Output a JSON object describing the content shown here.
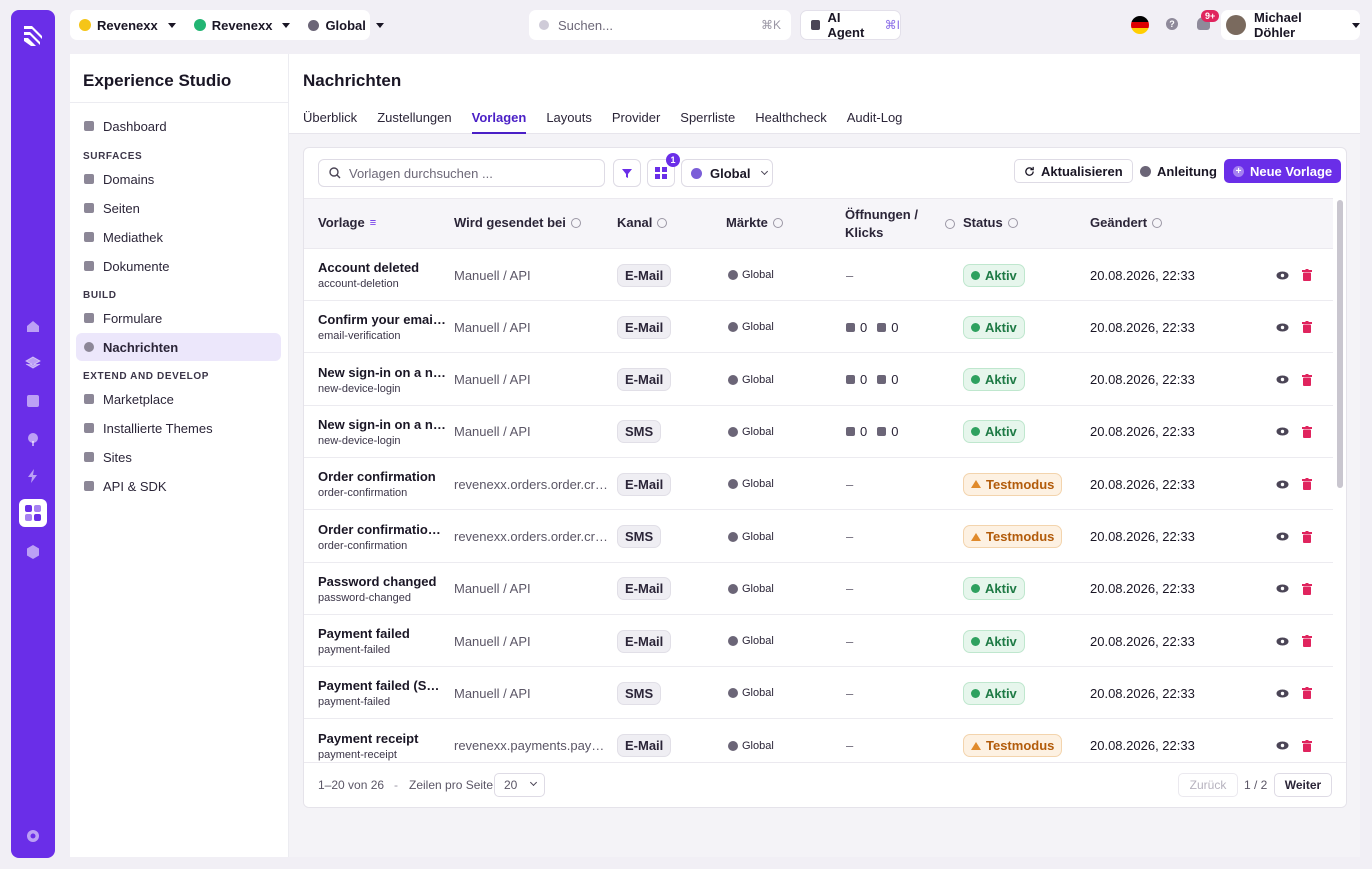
{
  "topbar": {
    "org": "Revenexx",
    "workspace": "Revenexx",
    "region": "Global",
    "search_placeholder": "Suchen...",
    "search_shortcut": "⌘K",
    "ai_agent": "AI Agent",
    "ai_shortcut": "⌘I",
    "notif_badge": "9+",
    "user_name": "Michael Döhler"
  },
  "sidebar": {
    "title": "Experience Studio",
    "dashboard": "Dashboard",
    "sections": {
      "surfaces": "SURFACES",
      "build": "BUILD",
      "extend": "EXTEND AND DEVELOP"
    },
    "surfaces": [
      "Domains",
      "Seiten",
      "Mediathek",
      "Dokumente"
    ],
    "build": [
      "Formulare",
      "Nachrichten"
    ],
    "extend": [
      "Marketplace",
      "Installierte Themes",
      "Sites",
      "API & SDK"
    ]
  },
  "page": {
    "title": "Nachrichten",
    "tabs": [
      "Überblick",
      "Zustellungen",
      "Vorlagen",
      "Layouts",
      "Provider",
      "Sperrliste",
      "Healthcheck",
      "Audit-Log"
    ],
    "active_tab": "Vorlagen"
  },
  "toolbar": {
    "search_placeholder": "Vorlagen durchsuchen ...",
    "view_badge": "1",
    "market": "Global",
    "refresh": "Aktualisieren",
    "guide": "Anleitung",
    "new": "Neue Vorlage"
  },
  "table": {
    "headers": [
      "Vorlage",
      "Wird gesendet bei",
      "Kanal",
      "Märkte",
      "Öffnungen /",
      "Klicks",
      "Status",
      "Geändert"
    ],
    "rows": [
      {
        "name": "Account deleted",
        "slug": "account-deletion",
        "trigger": "Manuell / API",
        "channel": "E-Mail",
        "market": "Global",
        "opens": "",
        "clicks": "",
        "dash": "–",
        "status": "Aktiv",
        "status_type": "ok",
        "date": "20.08.2026, 22:33"
      },
      {
        "name": "Confirm your email address",
        "slug": "email-verification",
        "trigger": "Manuell / API",
        "channel": "E-Mail",
        "market": "Global",
        "opens": "0",
        "clicks": "0",
        "dash": "",
        "status": "Aktiv",
        "status_type": "ok",
        "date": "20.08.2026, 22:33"
      },
      {
        "name": "New sign-in on a new device",
        "slug": "new-device-login",
        "trigger": "Manuell / API",
        "channel": "E-Mail",
        "market": "Global",
        "opens": "0",
        "clicks": "0",
        "dash": "",
        "status": "Aktiv",
        "status_type": "ok",
        "date": "20.08.2026, 22:33"
      },
      {
        "name": "New sign-in on a new device",
        "slug": "new-device-login",
        "trigger": "Manuell / API",
        "channel": "SMS",
        "market": "Global",
        "opens": "0",
        "clicks": "0",
        "dash": "",
        "status": "Aktiv",
        "status_type": "ok",
        "date": "20.08.2026, 22:33"
      },
      {
        "name": "Order confirmation",
        "slug": "order-confirmation",
        "trigger": "revenexx.orders.order.created",
        "channel": "E-Mail",
        "market": "Global",
        "opens": "",
        "clicks": "",
        "dash": "–",
        "status": "Testmodus",
        "status_type": "test",
        "date": "20.08.2026, 22:33"
      },
      {
        "name": "Order confirmation (SMS)",
        "slug": "order-confirmation",
        "trigger": "revenexx.orders.order.created",
        "channel": "SMS",
        "market": "Global",
        "opens": "",
        "clicks": "",
        "dash": "–",
        "status": "Testmodus",
        "status_type": "test",
        "date": "20.08.2026, 22:33"
      },
      {
        "name": "Password changed",
        "slug": "password-changed",
        "trigger": "Manuell / API",
        "channel": "E-Mail",
        "market": "Global",
        "opens": "",
        "clicks": "",
        "dash": "–",
        "status": "Aktiv",
        "status_type": "ok",
        "date": "20.08.2026, 22:33"
      },
      {
        "name": "Payment failed",
        "slug": "payment-failed",
        "trigger": "Manuell / API",
        "channel": "E-Mail",
        "market": "Global",
        "opens": "",
        "clicks": "",
        "dash": "–",
        "status": "Aktiv",
        "status_type": "ok",
        "date": "20.08.2026, 22:33"
      },
      {
        "name": "Payment failed (SMS)",
        "slug": "payment-failed",
        "trigger": "Manuell / API",
        "channel": "SMS",
        "market": "Global",
        "opens": "",
        "clicks": "",
        "dash": "–",
        "status": "Aktiv",
        "status_type": "ok",
        "date": "20.08.2026, 22:33"
      },
      {
        "name": "Payment receipt",
        "slug": "payment-receipt",
        "trigger": "revenexx.payments.payment.succeeded",
        "channel": "E-Mail",
        "market": "Global",
        "opens": "",
        "clicks": "",
        "dash": "–",
        "status": "Testmodus",
        "status_type": "test",
        "date": "20.08.2026, 22:33"
      }
    ]
  },
  "footer": {
    "range": "1–20 von 26",
    "sep": "-",
    "rows_label": "Zeilen pro Seite",
    "rows_value": "20",
    "prev": "Zurück",
    "page": "1 / 2",
    "next": "Weiter"
  },
  "colors": {
    "accent": "#6a2ee8",
    "ok": "#1e7a45",
    "test": "#b25b0a",
    "delete": "#e0245e"
  }
}
